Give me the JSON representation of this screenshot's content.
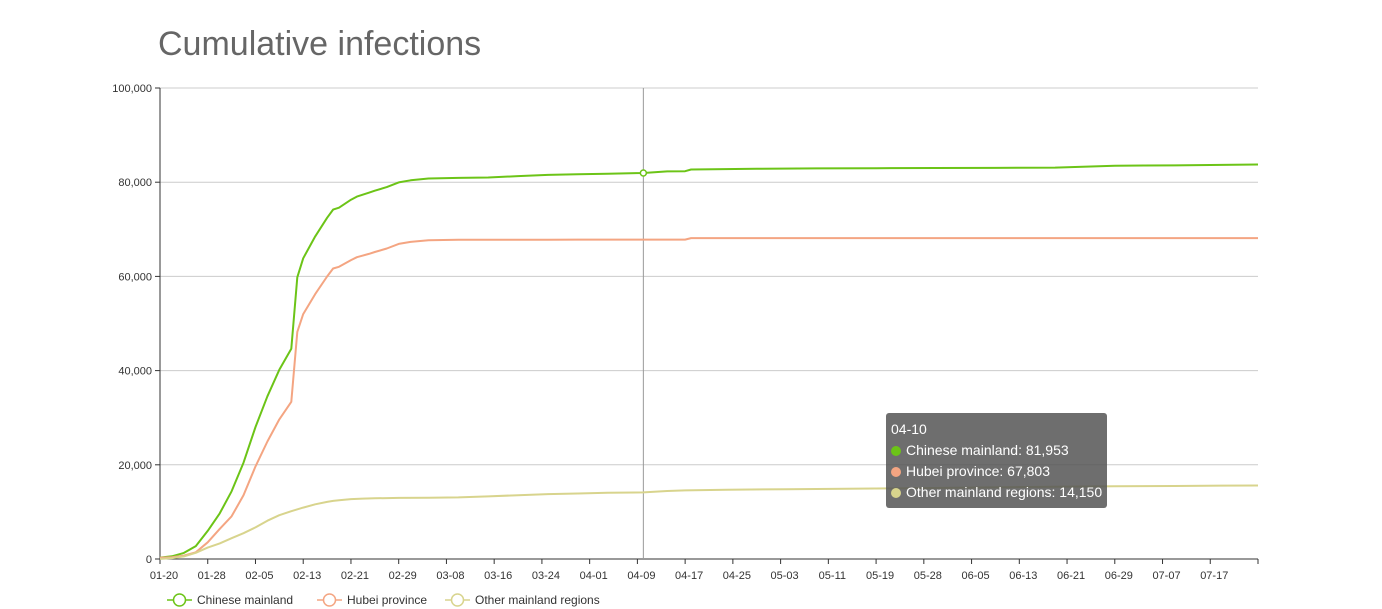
{
  "title": "Cumulative infections",
  "chart_data": {
    "type": "line",
    "title": "Cumulative infections",
    "x_tick_labels": [
      "01-20",
      "01-28",
      "02-05",
      "02-13",
      "02-21",
      "02-29",
      "03-08",
      "03-16",
      "03-24",
      "04-01",
      "04-09",
      "04-17",
      "04-25",
      "05-03",
      "05-11",
      "05-19",
      "05-28",
      "06-05",
      "06-13",
      "06-21",
      "06-29",
      "07-07",
      "07-17"
    ],
    "y_tick_labels": [
      "0",
      "20,000",
      "40,000",
      "60,000",
      "80,000",
      "100,000"
    ],
    "ylim": [
      0,
      100000
    ],
    "grid": true,
    "legend_position": "bottom-left",
    "x_index_range": [
      0,
      184
    ],
    "series": [
      {
        "name": "Chinese mainland",
        "color": "#6cc417",
        "points": [
          [
            0,
            291
          ],
          [
            2,
            571
          ],
          [
            4,
            1287
          ],
          [
            6,
            2744
          ],
          [
            8,
            5974
          ],
          [
            10,
            9692
          ],
          [
            12,
            14380
          ],
          [
            14,
            20438
          ],
          [
            16,
            28018
          ],
          [
            18,
            34546
          ],
          [
            20,
            40171
          ],
          [
            22,
            44653
          ],
          [
            23,
            59804
          ],
          [
            24,
            63851
          ],
          [
            26,
            68500
          ],
          [
            28,
            72436
          ],
          [
            29,
            74185
          ],
          [
            30,
            74577
          ],
          [
            32,
            76288
          ],
          [
            33,
            76936
          ],
          [
            35,
            77779
          ],
          [
            36,
            78190
          ],
          [
            38,
            78959
          ],
          [
            40,
            79968
          ],
          [
            42,
            80409
          ],
          [
            45,
            80793
          ],
          [
            50,
            80908
          ],
          [
            55,
            81008
          ],
          [
            60,
            81285
          ],
          [
            65,
            81554
          ],
          [
            70,
            81708
          ],
          [
            75,
            81802
          ],
          [
            81,
            81953
          ],
          [
            85,
            82295
          ],
          [
            88,
            82341
          ],
          [
            89,
            82692
          ],
          [
            100,
            82850
          ],
          [
            110,
            82933
          ],
          [
            120,
            82962
          ],
          [
            130,
            83017
          ],
          [
            140,
            83037
          ],
          [
            150,
            83090
          ],
          [
            160,
            83512
          ],
          [
            170,
            83565
          ],
          [
            178,
            83682
          ],
          [
            184,
            83750
          ]
        ]
      },
      {
        "name": "Hubei province",
        "color": "#f4a582",
        "points": [
          [
            0,
            270
          ],
          [
            2,
            375
          ],
          [
            4,
            729
          ],
          [
            6,
            1423
          ],
          [
            8,
            3554
          ],
          [
            10,
            6384
          ],
          [
            12,
            9074
          ],
          [
            14,
            13522
          ],
          [
            16,
            19665
          ],
          [
            18,
            24953
          ],
          [
            20,
            29631
          ],
          [
            22,
            33366
          ],
          [
            23,
            48206
          ],
          [
            24,
            51986
          ],
          [
            26,
            56249
          ],
          [
            28,
            59989
          ],
          [
            29,
            61682
          ],
          [
            30,
            62031
          ],
          [
            32,
            63454
          ],
          [
            33,
            64084
          ],
          [
            35,
            64786
          ],
          [
            36,
            65187
          ],
          [
            38,
            65914
          ],
          [
            40,
            66907
          ],
          [
            42,
            67332
          ],
          [
            45,
            67666
          ],
          [
            50,
            67794
          ],
          [
            55,
            67800
          ],
          [
            60,
            67801
          ],
          [
            65,
            67802
          ],
          [
            70,
            67803
          ],
          [
            81,
            67803
          ],
          [
            88,
            67803
          ],
          [
            89,
            68128
          ],
          [
            100,
            68128
          ],
          [
            130,
            68130
          ],
          [
            160,
            68135
          ],
          [
            184,
            68138
          ]
        ]
      },
      {
        "name": "Other mainland regions",
        "color": "#d8d48d",
        "points": [
          [
            0,
            21
          ],
          [
            2,
            196
          ],
          [
            4,
            558
          ],
          [
            6,
            1321
          ],
          [
            8,
            2420
          ],
          [
            10,
            3308
          ],
          [
            12,
            4406
          ],
          [
            14,
            5473
          ],
          [
            16,
            6716
          ],
          [
            18,
            8131
          ],
          [
            20,
            9300
          ],
          [
            22,
            10152
          ],
          [
            24,
            10916
          ],
          [
            26,
            11623
          ],
          [
            28,
            12118
          ],
          [
            29,
            12346
          ],
          [
            30,
            12464
          ],
          [
            32,
            12725
          ],
          [
            34,
            12833
          ],
          [
            36,
            12886
          ],
          [
            40,
            12983
          ],
          [
            45,
            13006
          ],
          [
            50,
            13085
          ],
          [
            55,
            13290
          ],
          [
            60,
            13548
          ],
          [
            65,
            13774
          ],
          [
            70,
            13908
          ],
          [
            75,
            14050
          ],
          [
            81,
            14150
          ],
          [
            85,
            14439
          ],
          [
            88,
            14568
          ],
          [
            95,
            14722
          ],
          [
            105,
            14810
          ],
          [
            115,
            14897
          ],
          [
            125,
            15009
          ],
          [
            135,
            15150
          ],
          [
            150,
            15350
          ],
          [
            160,
            15450
          ],
          [
            170,
            15500
          ],
          [
            178,
            15580
          ],
          [
            184,
            15600
          ]
        ]
      }
    ],
    "tooltip": {
      "x_index": 81,
      "date": "04-10",
      "rows": [
        {
          "label": "Chinese mainland: 81,953",
          "color": "#6cc417"
        },
        {
          "label": "Hubei province: 67,803",
          "color": "#f4a582"
        },
        {
          "label": "Other mainland regions: 14,150",
          "color": "#d8d48d"
        }
      ]
    }
  }
}
